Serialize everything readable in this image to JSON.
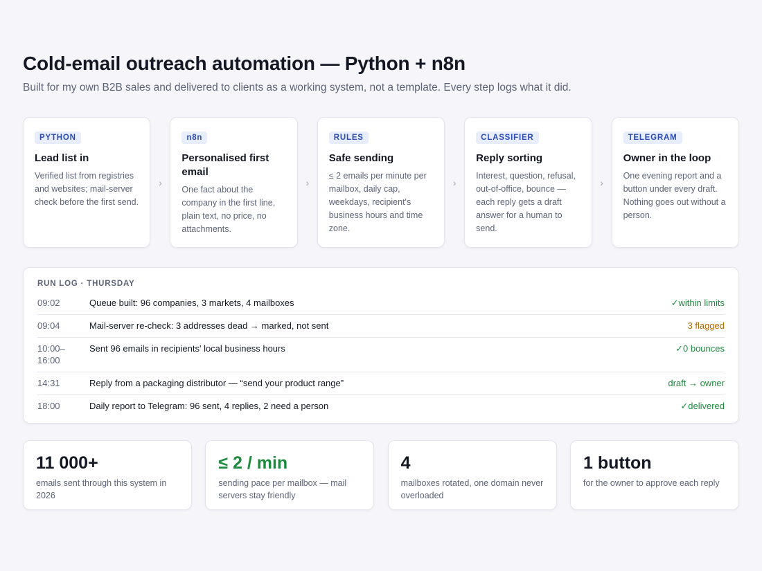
{
  "header": {
    "title": "Cold-email outreach automation — Python + n8n",
    "subtitle": "Built for my own B2B sales and delivered to clients as a working system, not a template. Every step logs what it did."
  },
  "steps": [
    {
      "tag": "PYTHON",
      "title": "Lead list in",
      "text": "Verified list from registries and websites; mail-server check before the first send."
    },
    {
      "tag": "n8n",
      "title": "Personalised first email",
      "text": "One fact about the company in the first line, plain text, no price, no attachments."
    },
    {
      "tag": "RULES",
      "title": "Safe sending",
      "text": "≤ 2 emails per minute per mailbox, daily cap, weekdays, recipient's business hours and time zone."
    },
    {
      "tag": "CLASSIFIER",
      "title": "Reply sorting",
      "text": "Interest, question, refusal, out-of-office, bounce — each reply gets a draft answer for a human to send."
    },
    {
      "tag": "TELEGRAM",
      "title": "Owner in the loop",
      "text": "One evening report and a button under every draft. Nothing goes out without a person."
    }
  ],
  "log": {
    "title": "RUN LOG · THURSDAY",
    "rows": [
      {
        "time": "09:02",
        "event": "Queue built: 96 companies, 3 markets, 4 mailboxes",
        "status": "✓within limits",
        "color": "#1e8a3e"
      },
      {
        "time": "09:04",
        "event": "Mail-server re-check: 3 addresses dead → marked, not sent",
        "status": "3 flagged",
        "color": "#b56a00"
      },
      {
        "time": "10:00–16:00",
        "event": "Sent 96 emails in recipients' local business hours",
        "status": "✓0 bounces",
        "color": "#1e8a3e"
      },
      {
        "time": "14:31",
        "event": "Reply from a packaging distributor — “send your product range”",
        "status": "draft → owner",
        "color": "#1e8a3e"
      },
      {
        "time": "18:00",
        "event": "Daily report to Telegram: 96 sent, 4 replies, 2 need a person",
        "status": "✓delivered",
        "color": "#1e8a3e"
      }
    ]
  },
  "stats": [
    {
      "value": "11 000+",
      "label": "emails sent through this system in 2026",
      "color": "#141824"
    },
    {
      "value": "≤ 2 / min",
      "label": "sending pace per mailbox — mail servers stay friendly",
      "color": "#1e8a3e"
    },
    {
      "value": "4",
      "label": "mailboxes rotated, one domain never overloaded",
      "color": "#141824"
    },
    {
      "value": "1 button",
      "label": "for the owner to approve each reply",
      "color": "#141824"
    }
  ]
}
